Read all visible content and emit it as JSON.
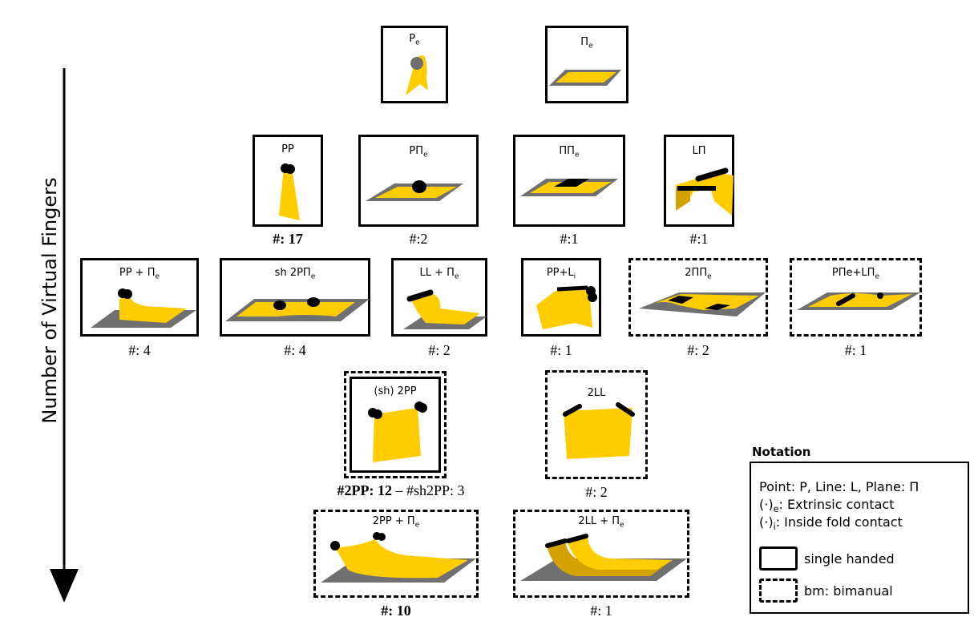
{
  "axis_title": "Number of Virtual Fingers",
  "boxes": {
    "pe": {
      "label": "P",
      "sub": "e"
    },
    "pi_e": {
      "label": "Π",
      "sub": "e"
    },
    "pp": {
      "label": "PP",
      "count": "#: 17"
    },
    "ppi_e": {
      "label": "PΠ",
      "sub": "e",
      "count": "#:2"
    },
    "pipi_e": {
      "label": "ΠΠ",
      "sub": "e",
      "count": "#:1"
    },
    "lpi": {
      "label": "LΠ",
      "count": "#:1"
    },
    "pp_pie": {
      "label": "PP  + Π",
      "sub": "e",
      "count": "#: 4"
    },
    "sh2ppie": {
      "label": "sh 2PΠ",
      "sub": "e",
      "count": "#: 4"
    },
    "ll_pie": {
      "label": "LL  + Π",
      "sub": "e",
      "count": "#: 2"
    },
    "pp_li": {
      "label": "PP+L",
      "sub": "i",
      "count": "#: 1"
    },
    "twopipie": {
      "label": "2ΠΠ",
      "sub": "e",
      "count": "#: 2"
    },
    "ppie_lpie": {
      "label": "PΠe+LΠ",
      "sub": "e",
      "count": "#: 1"
    },
    "sh2pp": {
      "label": "(sh) 2PP",
      "count_bold": "#2PP: 12",
      "count_rest": " – #sh2PP: 3"
    },
    "twoll": {
      "label": "2LL",
      "count": "#: 2"
    },
    "twopp_pie": {
      "label": "2PP + Π",
      "sub": "e",
      "count": "#: 10"
    },
    "twoll_pie": {
      "label": "2LL + Π",
      "sub": "e",
      "count": "#: 1"
    }
  },
  "notation": {
    "title": "Notation",
    "line1": "Point: P, Line: L, Plane: Π",
    "line2_prefix": "(·)",
    "line2_sub": "e",
    "line2_text": ": Extrinsic contact",
    "line3_prefix": "(·)",
    "line3_sub": "i",
    "line3_text": ": Inside fold contact",
    "single": "single handed",
    "bimanual": "bm: bimanual"
  },
  "colors": {
    "cloth": "#ffcc00",
    "cloth_dark": "#d4a200",
    "table": "#707070",
    "contact": "#000000"
  }
}
